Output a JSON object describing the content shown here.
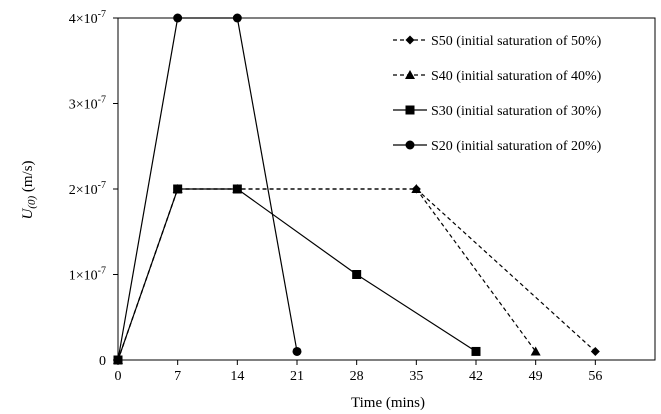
{
  "chart_data": {
    "type": "line",
    "xlabel": "Time (mins)",
    "ylabel_main": "U",
    "ylabel_sub": "(0)",
    "ylabel_unit": " (m/s)",
    "xlim": [
      0,
      63
    ],
    "ylim": [
      0,
      4e-07
    ],
    "x_ticks": [
      0,
      7,
      14,
      21,
      28,
      35,
      42,
      49,
      56
    ],
    "x_tick_labels": [
      "0",
      "7",
      "14",
      "21",
      "28",
      "35",
      "42",
      "49",
      "56"
    ],
    "y_ticks": [
      0,
      1e-07,
      2e-07,
      3e-07,
      4e-07
    ],
    "y_tick_labels": [
      {
        "base": "0",
        "exp": ""
      },
      {
        "base": "1×10",
        "exp": "-7"
      },
      {
        "base": "2×10",
        "exp": "-7"
      },
      {
        "base": "3×10",
        "exp": "-7"
      },
      {
        "base": "4×10",
        "exp": "-7"
      }
    ],
    "grid": false,
    "legend_position": "top-right",
    "series": [
      {
        "name": "S50 (initial saturation of 50%)",
        "marker": "diamond",
        "dash": true,
        "x": [
          0,
          7,
          14,
          35,
          56
        ],
        "y": [
          0,
          2e-07,
          2e-07,
          2e-07,
          1e-08
        ]
      },
      {
        "name": "S40 (initial saturation of 40%)",
        "marker": "triangle",
        "dash": true,
        "x": [
          0,
          7,
          14,
          35,
          49
        ],
        "y": [
          0,
          2e-07,
          2e-07,
          2e-07,
          1e-08
        ]
      },
      {
        "name": "S30 (initial saturation of 30%)",
        "marker": "square",
        "dash": false,
        "x": [
          0,
          7,
          14,
          28,
          42
        ],
        "y": [
          0,
          2e-07,
          2e-07,
          1e-07,
          1e-08
        ]
      },
      {
        "name": "S20 (initial saturation of 20%)",
        "marker": "circle",
        "dash": false,
        "x": [
          0,
          7,
          14,
          21
        ],
        "y": [
          0,
          4e-07,
          4e-07,
          1e-08
        ]
      }
    ]
  }
}
